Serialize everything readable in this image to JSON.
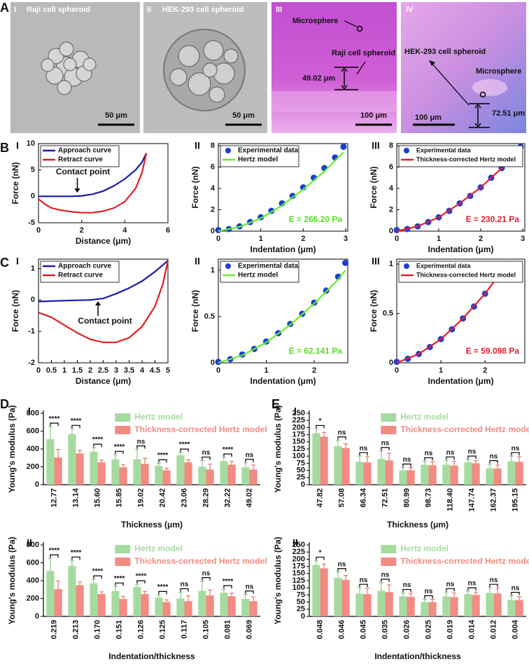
{
  "panel_letters": [
    "A",
    "B",
    "C",
    "D",
    "E"
  ],
  "images": [
    {
      "numeral": "I",
      "title": "Raji cell spheroid",
      "scale_bar": "50 μm"
    },
    {
      "numeral": "II",
      "title": "HEK-293 cell spheroid",
      "scale_bar": "50 μm"
    },
    {
      "numeral": "III",
      "labels": [
        "Microsphere",
        "Raji cell spheroid"
      ],
      "height": "49.02 μm",
      "scale_bar": "100 μm"
    },
    {
      "numeral": "IV",
      "labels": [
        "HEK-293 cell spheroid",
        "Microsphere"
      ],
      "height": "72.51 μm",
      "scale_bar": "100 μm"
    }
  ],
  "chart_data": [
    {
      "type": "line",
      "panel": "I",
      "xlabel": "Distance (μm)",
      "ylabel": "Force (nN)",
      "xlim": [
        0,
        6
      ],
      "ylim": [
        -5,
        10
      ],
      "xticks": [
        0,
        2,
        4,
        6
      ],
      "yticks": [
        -5,
        0,
        5,
        10
      ],
      "annotation": "Contact point",
      "series": [
        {
          "name": "Approach curve",
          "color": "#1a1aa8",
          "style": "line",
          "x": [
            0,
            0.5,
            1,
            1.5,
            2,
            2.5,
            3,
            3.5,
            4,
            4.5,
            4.8,
            5.0
          ],
          "values": [
            0,
            0,
            0,
            0,
            0.1,
            0.4,
            1.0,
            2.0,
            3.3,
            5.0,
            6.5,
            8.2
          ]
        },
        {
          "name": "Retract curve",
          "color": "#e02020",
          "style": "line",
          "x": [
            0,
            0.3,
            0.6,
            1,
            1.5,
            2,
            2.5,
            3,
            3.5,
            4,
            4.5,
            4.8,
            5.0
          ],
          "values": [
            -0.5,
            -1.5,
            -2.2,
            -2.6,
            -2.9,
            -3.1,
            -3.1,
            -2.8,
            -2.2,
            -1.0,
            1.5,
            4.5,
            8.2
          ]
        }
      ]
    },
    {
      "type": "line",
      "panel": "II",
      "xlabel": "Indentation (μm)",
      "ylabel": "Force (nN)",
      "xlim": [
        0,
        3.05
      ],
      "ylim": [
        0,
        8.2
      ],
      "xticks": [
        0,
        1,
        2,
        3
      ],
      "yticks": [
        0,
        2,
        4,
        6,
        8
      ],
      "annotation": "E = 266.20 Pa",
      "annotation_color": "#55dd22",
      "series": [
        {
          "name": "Experimental data",
          "color": "#1f3fd0",
          "style": "markers",
          "x": [
            0,
            0.25,
            0.5,
            0.75,
            1,
            1.25,
            1.5,
            1.75,
            2,
            2.25,
            2.5,
            2.75,
            2.95
          ],
          "values": [
            0.1,
            0.2,
            0.45,
            0.85,
            1.3,
            1.9,
            2.6,
            3.3,
            4.1,
            5.0,
            5.9,
            6.9,
            7.9
          ]
        },
        {
          "name": "Hertz model",
          "color": "#66ee33",
          "style": "line",
          "x": [
            0,
            0.5,
            1,
            1.5,
            2,
            2.5,
            2.95
          ],
          "values": [
            0,
            0.4,
            1.2,
            2.4,
            3.9,
            5.6,
            7.4
          ]
        }
      ]
    },
    {
      "type": "line",
      "panel": "III",
      "xlabel": "Indentation (μm)",
      "ylabel": "Force (nN)",
      "xlim": [
        0,
        3.05
      ],
      "ylim": [
        0,
        8.2
      ],
      "xticks": [
        0,
        1,
        2,
        3
      ],
      "yticks": [
        0,
        2,
        4,
        6,
        8
      ],
      "annotation": "E = 230.21 Pa",
      "annotation_color": "#e0202e",
      "series": [
        {
          "name": "Experimental data",
          "color": "#1f3fd0",
          "style": "markers",
          "x": [
            0,
            0.25,
            0.5,
            0.75,
            1,
            1.25,
            1.5,
            1.75,
            2,
            2.25,
            2.5,
            2.75,
            2.95
          ],
          "values": [
            0.1,
            0.2,
            0.45,
            0.85,
            1.3,
            1.9,
            2.6,
            3.3,
            4.1,
            5.0,
            5.9,
            6.9,
            7.9
          ]
        },
        {
          "name": "Thickness-corrected Hertz model",
          "color": "#e0202e",
          "style": "line",
          "x": [
            0,
            0.5,
            1,
            1.5,
            2,
            2.5,
            2.95
          ],
          "values": [
            0,
            0.45,
            1.3,
            2.6,
            4.1,
            5.9,
            7.9
          ]
        }
      ]
    },
    {
      "type": "line",
      "panel": "I",
      "xlabel": "Distance (μm)",
      "ylabel": "Force (nN)",
      "xlim": [
        0,
        5
      ],
      "ylim": [
        -2,
        1.3
      ],
      "xticks": [
        0,
        0.5,
        1,
        1.5,
        2,
        2.5,
        3,
        3.5,
        4,
        4.5,
        5
      ],
      "yticks": [
        -2,
        -1,
        0,
        1
      ],
      "annotation": "Contact point",
      "series": [
        {
          "name": "Approach curve",
          "color": "#1a1aa8",
          "style": "line",
          "x": [
            0,
            1,
            2,
            2.5,
            3,
            3.5,
            4,
            4.5,
            5
          ],
          "values": [
            -0.05,
            -0.02,
            0,
            0.05,
            0.2,
            0.38,
            0.6,
            0.9,
            1.25
          ]
        },
        {
          "name": "Retract curve",
          "color": "#e02020",
          "style": "line",
          "x": [
            0,
            0.5,
            1,
            1.5,
            2,
            2.5,
            3,
            3.5,
            4,
            4.5,
            4.8,
            5
          ],
          "values": [
            -0.4,
            -0.55,
            -0.8,
            -1.05,
            -1.25,
            -1.35,
            -1.35,
            -1.2,
            -0.85,
            -0.2,
            0.5,
            1.25
          ]
        }
      ]
    },
    {
      "type": "line",
      "panel": "II",
      "xlabel": "Indentation (μm)",
      "ylabel": "Force (nN)",
      "xlim": [
        0,
        2.7
      ],
      "ylim": [
        0,
        1.12
      ],
      "xticks": [
        0,
        1,
        2
      ],
      "yticks": [
        0,
        0.5,
        1
      ],
      "annotation": "E = 62.141 Pa",
      "annotation_color": "#55dd22",
      "series": [
        {
          "name": "Experimental data",
          "color": "#1f3fd0",
          "style": "markers",
          "x": [
            0,
            0.25,
            0.5,
            0.75,
            1,
            1.25,
            1.5,
            1.75,
            2,
            2.25,
            2.5,
            2.65
          ],
          "values": [
            0.01,
            0.04,
            0.09,
            0.15,
            0.23,
            0.32,
            0.42,
            0.53,
            0.65,
            0.78,
            0.93,
            1.08
          ]
        },
        {
          "name": "Hertz model",
          "color": "#66ee33",
          "style": "line",
          "x": [
            0,
            0.5,
            1,
            1.5,
            2,
            2.5,
            2.65
          ],
          "values": [
            0,
            0.08,
            0.22,
            0.41,
            0.64,
            0.9,
            1.0
          ]
        }
      ]
    },
    {
      "type": "line",
      "panel": "III",
      "xlabel": "Indentation (μm)",
      "ylabel": "Force (nN)",
      "xlim": [
        0,
        2.9
      ],
      "ylim": [
        0,
        1.05
      ],
      "xticks": [
        0,
        1,
        2
      ],
      "yticks": [
        0,
        0.5,
        1
      ],
      "annotation": "E = 59.098 Pa",
      "annotation_color": "#e0202e",
      "series": [
        {
          "name": "Experimental data",
          "color": "#1f3fd0",
          "style": "markers",
          "x": [
            0,
            0.25,
            0.5,
            0.75,
            1,
            1.25,
            1.5,
            1.75,
            2,
            2.25,
            2.5
          ],
          "values": [
            0.01,
            0.04,
            0.09,
            0.16,
            0.24,
            0.34,
            0.45,
            0.57,
            0.7,
            0.85,
            1.0
          ]
        },
        {
          "name": "Thickness-corrected Hertz model",
          "color": "#e0202e",
          "style": "line",
          "x": [
            0,
            0.5,
            1,
            1.5,
            2,
            2.5
          ],
          "values": [
            0,
            0.09,
            0.24,
            0.45,
            0.7,
            1.0
          ]
        }
      ]
    },
    {
      "type": "bar",
      "panel": "I",
      "xlabel": "Thickness (μm)",
      "ylabel": "Young's modulus (Pa)",
      "ylim": [
        0,
        800
      ],
      "yticks": [
        0,
        200,
        400,
        600,
        800
      ],
      "categories": [
        "12.77",
        "13.14",
        "15.60",
        "15.85",
        "19.02",
        "20.42",
        "23.06",
        "28.29",
        "32.22",
        "49.02"
      ],
      "significance": [
        "****",
        "****",
        "****",
        "****",
        "ns",
        "****",
        "****",
        "ns",
        "****",
        "ns"
      ],
      "series": [
        {
          "name": "Hertz model",
          "color": "#a6dba0",
          "values": [
            510,
            565,
            370,
            285,
            285,
            210,
            330,
            200,
            265,
            195
          ],
          "errors": [
            140,
            60,
            45,
            50,
            110,
            30,
            30,
            70,
            40,
            50
          ]
        },
        {
          "name": "Thickness-corrected Hertz model",
          "color": "#f28b82",
          "values": [
            305,
            350,
            250,
            195,
            235,
            160,
            250,
            170,
            225,
            170
          ],
          "errors": [
            90,
            35,
            25,
            30,
            60,
            25,
            30,
            60,
            35,
            50
          ]
        }
      ]
    },
    {
      "type": "bar",
      "panel": "II",
      "xlabel": "Indentation/thickness",
      "ylabel": "Young's modulus (Pa)",
      "ylim": [
        0,
        800
      ],
      "yticks": [
        0,
        200,
        400,
        600,
        800
      ],
      "categories": [
        "0.219",
        "0.213",
        "0.170",
        "0.151",
        "0.126",
        "0.125",
        "0.117",
        "0.105",
        "0.081",
        "0.069"
      ],
      "significance": [
        "****",
        "****",
        "****",
        "****",
        "****",
        "****",
        "ns",
        "ns",
        "****",
        "ns"
      ],
      "series": [
        {
          "name": "Hertz model",
          "color": "#a6dba0",
          "values": [
            510,
            565,
            370,
            285,
            330,
            210,
            200,
            285,
            265,
            195
          ],
          "errors": [
            140,
            60,
            45,
            50,
            30,
            30,
            70,
            110,
            40,
            50
          ]
        },
        {
          "name": "Thickness-corrected Hertz model",
          "color": "#f28b82",
          "values": [
            305,
            350,
            250,
            195,
            250,
            160,
            170,
            235,
            225,
            170
          ],
          "errors": [
            90,
            35,
            25,
            30,
            30,
            25,
            60,
            60,
            35,
            50
          ]
        }
      ]
    },
    {
      "type": "bar",
      "panel": "I",
      "xlabel": "Thickness (μm)",
      "ylabel": "Young's modulus (Pa)",
      "ylim": [
        0,
        250
      ],
      "yticks": [
        0,
        25,
        50,
        75,
        100,
        125,
        150,
        175,
        200,
        225,
        250
      ],
      "categories": [
        "47.82",
        "57.08",
        "66.34",
        "72.51",
        "80.99",
        "98.73",
        "118.40",
        "147.74",
        "162.37",
        "195.15"
      ],
      "significance": [
        "*",
        "ns",
        "ns",
        "ns",
        "ns",
        "ns",
        "ns",
        "ns",
        "ns",
        "ns"
      ],
      "series": [
        {
          "name": "Hertz model",
          "color": "#a6dba0",
          "values": [
            180,
            135,
            80,
            90,
            50,
            70,
            70,
            78,
            57,
            82
          ],
          "errors": [
            15,
            20,
            20,
            28,
            10,
            12,
            15,
            10,
            15,
            18
          ]
        },
        {
          "name": "Thickness-corrected Hertz model",
          "color": "#f28b82",
          "values": [
            168,
            128,
            78,
            85,
            50,
            68,
            67,
            75,
            57,
            80
          ],
          "errors": [
            15,
            15,
            20,
            25,
            10,
            12,
            15,
            10,
            12,
            18
          ]
        }
      ]
    },
    {
      "type": "bar",
      "panel": "II",
      "xlabel": "Indentation/thickness",
      "ylabel": "Young's modulus (Pa)",
      "ylim": [
        0,
        250
      ],
      "yticks": [
        0,
        25,
        50,
        75,
        100,
        125,
        150,
        175,
        200,
        225,
        250
      ],
      "categories": [
        "0.048",
        "0.046",
        "0.045",
        "0.035",
        "0.026",
        "0.025",
        "0.019",
        "0.014",
        "0.012",
        "0.004"
      ],
      "significance": [
        "*",
        "ns",
        "ns",
        "ns",
        "ns",
        "ns",
        "ns",
        "ns",
        "ns",
        "ns"
      ],
      "series": [
        {
          "name": "Hertz model",
          "color": "#a6dba0",
          "values": [
            180,
            135,
            80,
            90,
            70,
            50,
            70,
            78,
            82,
            57
          ],
          "errors": [
            15,
            20,
            20,
            28,
            12,
            10,
            15,
            10,
            18,
            15
          ]
        },
        {
          "name": "Thickness-corrected Hertz model",
          "color": "#f28b82",
          "values": [
            168,
            128,
            78,
            85,
            68,
            50,
            67,
            75,
            80,
            57
          ],
          "errors": [
            15,
            15,
            20,
            25,
            12,
            10,
            15,
            10,
            18,
            12
          ]
        }
      ]
    }
  ]
}
